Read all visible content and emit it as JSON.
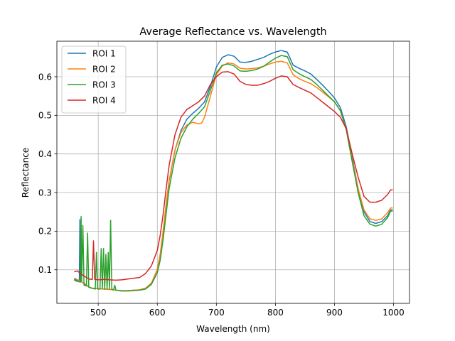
{
  "chart_data": {
    "type": "line",
    "title": "Average Reflectance vs. Wavelength",
    "xlabel": "Wavelength (nm)",
    "ylabel": "Reflectance",
    "xlim": [
      430,
      1027
    ],
    "ylim": [
      0.013,
      0.692
    ],
    "xticks": [
      500,
      600,
      700,
      800,
      900,
      1000
    ],
    "yticks": [
      0.1,
      0.2,
      0.3,
      0.4,
      0.5,
      0.6
    ],
    "grid": true,
    "legend_position": "top-left",
    "series": [
      {
        "name": "ROI 1",
        "color": "#1f77b4",
        "points": [
          [
            460,
            0.075
          ],
          [
            465,
            0.072
          ],
          [
            468,
            0.07
          ],
          [
            469,
            0.23
          ],
          [
            470,
            0.075
          ],
          [
            471,
            0.07
          ],
          [
            475,
            0.065
          ],
          [
            480,
            0.06
          ],
          [
            485,
            0.054
          ],
          [
            490,
            0.052
          ],
          [
            500,
            0.051
          ],
          [
            510,
            0.05
          ],
          [
            520,
            0.049
          ],
          [
            530,
            0.047
          ],
          [
            540,
            0.046
          ],
          [
            550,
            0.046
          ],
          [
            560,
            0.047
          ],
          [
            570,
            0.048
          ],
          [
            580,
            0.052
          ],
          [
            590,
            0.065
          ],
          [
            600,
            0.1
          ],
          [
            605,
            0.14
          ],
          [
            610,
            0.2
          ],
          [
            615,
            0.27
          ],
          [
            620,
            0.33
          ],
          [
            630,
            0.41
          ],
          [
            640,
            0.46
          ],
          [
            650,
            0.49
          ],
          [
            660,
            0.505
          ],
          [
            670,
            0.518
          ],
          [
            680,
            0.535
          ],
          [
            690,
            0.575
          ],
          [
            700,
            0.625
          ],
          [
            710,
            0.65
          ],
          [
            720,
            0.657
          ],
          [
            730,
            0.653
          ],
          [
            740,
            0.638
          ],
          [
            750,
            0.637
          ],
          [
            760,
            0.64
          ],
          [
            770,
            0.645
          ],
          [
            780,
            0.65
          ],
          [
            790,
            0.658
          ],
          [
            800,
            0.664
          ],
          [
            810,
            0.668
          ],
          [
            820,
            0.664
          ],
          [
            830,
            0.63
          ],
          [
            840,
            0.622
          ],
          [
            850,
            0.615
          ],
          [
            860,
            0.607
          ],
          [
            870,
            0.593
          ],
          [
            880,
            0.578
          ],
          [
            890,
            0.562
          ],
          [
            900,
            0.545
          ],
          [
            910,
            0.52
          ],
          [
            920,
            0.47
          ],
          [
            930,
            0.39
          ],
          [
            940,
            0.31
          ],
          [
            950,
            0.25
          ],
          [
            960,
            0.225
          ],
          [
            970,
            0.22
          ],
          [
            980,
            0.225
          ],
          [
            990,
            0.24
          ],
          [
            995,
            0.255
          ],
          [
            998,
            0.255
          ]
        ]
      },
      {
        "name": "ROI 2",
        "color": "#ff7f0e",
        "points": [
          [
            460,
            0.078
          ],
          [
            465,
            0.074
          ],
          [
            470,
            0.071
          ],
          [
            475,
            0.066
          ],
          [
            480,
            0.061
          ],
          [
            485,
            0.055
          ],
          [
            490,
            0.052
          ],
          [
            500,
            0.051
          ],
          [
            510,
            0.05
          ],
          [
            520,
            0.049
          ],
          [
            530,
            0.047
          ],
          [
            540,
            0.046
          ],
          [
            550,
            0.046
          ],
          [
            560,
            0.047
          ],
          [
            570,
            0.048
          ],
          [
            580,
            0.052
          ],
          [
            590,
            0.065
          ],
          [
            600,
            0.1
          ],
          [
            605,
            0.14
          ],
          [
            610,
            0.2
          ],
          [
            615,
            0.27
          ],
          [
            620,
            0.33
          ],
          [
            630,
            0.41
          ],
          [
            640,
            0.455
          ],
          [
            650,
            0.475
          ],
          [
            660,
            0.482
          ],
          [
            670,
            0.478
          ],
          [
            675,
            0.48
          ],
          [
            680,
            0.495
          ],
          [
            690,
            0.55
          ],
          [
            700,
            0.605
          ],
          [
            710,
            0.628
          ],
          [
            720,
            0.636
          ],
          [
            730,
            0.633
          ],
          [
            740,
            0.622
          ],
          [
            750,
            0.62
          ],
          [
            760,
            0.621
          ],
          [
            770,
            0.623
          ],
          [
            780,
            0.627
          ],
          [
            790,
            0.633
          ],
          [
            800,
            0.638
          ],
          [
            810,
            0.64
          ],
          [
            820,
            0.636
          ],
          [
            830,
            0.605
          ],
          [
            840,
            0.595
          ],
          [
            850,
            0.588
          ],
          [
            860,
            0.582
          ],
          [
            870,
            0.572
          ],
          [
            880,
            0.56
          ],
          [
            890,
            0.548
          ],
          [
            900,
            0.535
          ],
          [
            910,
            0.512
          ],
          [
            920,
            0.465
          ],
          [
            930,
            0.385
          ],
          [
            940,
            0.31
          ],
          [
            950,
            0.255
          ],
          [
            960,
            0.232
          ],
          [
            970,
            0.228
          ],
          [
            980,
            0.232
          ],
          [
            990,
            0.248
          ],
          [
            995,
            0.26
          ],
          [
            998,
            0.26
          ]
        ]
      },
      {
        "name": "ROI 3",
        "color": "#2ca02c",
        "points": [
          [
            460,
            0.072
          ],
          [
            465,
            0.07
          ],
          [
            470,
            0.068
          ],
          [
            471,
            0.238
          ],
          [
            472,
            0.07
          ],
          [
            474,
            0.215
          ],
          [
            476,
            0.06
          ],
          [
            480,
            0.058
          ],
          [
            482,
            0.195
          ],
          [
            484,
            0.055
          ],
          [
            490,
            0.052
          ],
          [
            495,
            0.05
          ],
          [
            497,
            0.145
          ],
          [
            499,
            0.05
          ],
          [
            503,
            0.05
          ],
          [
            505,
            0.155
          ],
          [
            507,
            0.05
          ],
          [
            509,
            0.155
          ],
          [
            511,
            0.05
          ],
          [
            513,
            0.14
          ],
          [
            515,
            0.05
          ],
          [
            517,
            0.145
          ],
          [
            519,
            0.05
          ],
          [
            521,
            0.228
          ],
          [
            523,
            0.05
          ],
          [
            526,
            0.048
          ],
          [
            528,
            0.06
          ],
          [
            530,
            0.047
          ],
          [
            540,
            0.045
          ],
          [
            550,
            0.045
          ],
          [
            560,
            0.046
          ],
          [
            570,
            0.047
          ],
          [
            580,
            0.05
          ],
          [
            590,
            0.062
          ],
          [
            600,
            0.092
          ],
          [
            605,
            0.125
          ],
          [
            610,
            0.18
          ],
          [
            615,
            0.245
          ],
          [
            620,
            0.31
          ],
          [
            630,
            0.39
          ],
          [
            640,
            0.44
          ],
          [
            650,
            0.47
          ],
          [
            660,
            0.49
          ],
          [
            670,
            0.505
          ],
          [
            680,
            0.522
          ],
          [
            690,
            0.565
          ],
          [
            700,
            0.61
          ],
          [
            710,
            0.63
          ],
          [
            720,
            0.633
          ],
          [
            730,
            0.628
          ],
          [
            740,
            0.615
          ],
          [
            750,
            0.614
          ],
          [
            760,
            0.616
          ],
          [
            770,
            0.62
          ],
          [
            780,
            0.627
          ],
          [
            790,
            0.638
          ],
          [
            800,
            0.648
          ],
          [
            810,
            0.655
          ],
          [
            820,
            0.652
          ],
          [
            830,
            0.618
          ],
          [
            840,
            0.608
          ],
          [
            850,
            0.6
          ],
          [
            860,
            0.593
          ],
          [
            870,
            0.58
          ],
          [
            880,
            0.565
          ],
          [
            890,
            0.55
          ],
          [
            900,
            0.535
          ],
          [
            910,
            0.512
          ],
          [
            920,
            0.462
          ],
          [
            930,
            0.38
          ],
          [
            940,
            0.3
          ],
          [
            950,
            0.24
          ],
          [
            960,
            0.218
          ],
          [
            970,
            0.213
          ],
          [
            980,
            0.218
          ],
          [
            990,
            0.235
          ],
          [
            995,
            0.252
          ],
          [
            998,
            0.252
          ]
        ]
      },
      {
        "name": "ROI 4",
        "color": "#d62728",
        "points": [
          [
            460,
            0.095
          ],
          [
            465,
            0.097
          ],
          [
            470,
            0.09
          ],
          [
            475,
            0.085
          ],
          [
            480,
            0.08
          ],
          [
            485,
            0.076
          ],
          [
            490,
            0.075
          ],
          [
            492,
            0.175
          ],
          [
            494,
            0.075
          ],
          [
            500,
            0.074
          ],
          [
            510,
            0.075
          ],
          [
            520,
            0.074
          ],
          [
            530,
            0.073
          ],
          [
            540,
            0.074
          ],
          [
            550,
            0.076
          ],
          [
            560,
            0.078
          ],
          [
            570,
            0.08
          ],
          [
            580,
            0.09
          ],
          [
            590,
            0.11
          ],
          [
            600,
            0.15
          ],
          [
            605,
            0.19
          ],
          [
            610,
            0.245
          ],
          [
            615,
            0.31
          ],
          [
            620,
            0.37
          ],
          [
            630,
            0.45
          ],
          [
            640,
            0.495
          ],
          [
            650,
            0.515
          ],
          [
            660,
            0.525
          ],
          [
            670,
            0.535
          ],
          [
            680,
            0.55
          ],
          [
            690,
            0.58
          ],
          [
            700,
            0.6
          ],
          [
            710,
            0.612
          ],
          [
            720,
            0.613
          ],
          [
            730,
            0.607
          ],
          [
            740,
            0.588
          ],
          [
            750,
            0.58
          ],
          [
            760,
            0.578
          ],
          [
            770,
            0.578
          ],
          [
            780,
            0.582
          ],
          [
            790,
            0.588
          ],
          [
            800,
            0.596
          ],
          [
            810,
            0.602
          ],
          [
            820,
            0.6
          ],
          [
            830,
            0.58
          ],
          [
            840,
            0.572
          ],
          [
            850,
            0.565
          ],
          [
            860,
            0.558
          ],
          [
            870,
            0.546
          ],
          [
            880,
            0.534
          ],
          [
            890,
            0.522
          ],
          [
            900,
            0.51
          ],
          [
            910,
            0.495
          ],
          [
            920,
            0.465
          ],
          [
            930,
            0.4
          ],
          [
            940,
            0.34
          ],
          [
            950,
            0.29
          ],
          [
            960,
            0.275
          ],
          [
            970,
            0.275
          ],
          [
            980,
            0.28
          ],
          [
            990,
            0.295
          ],
          [
            995,
            0.307
          ],
          [
            998,
            0.307
          ]
        ]
      }
    ]
  }
}
